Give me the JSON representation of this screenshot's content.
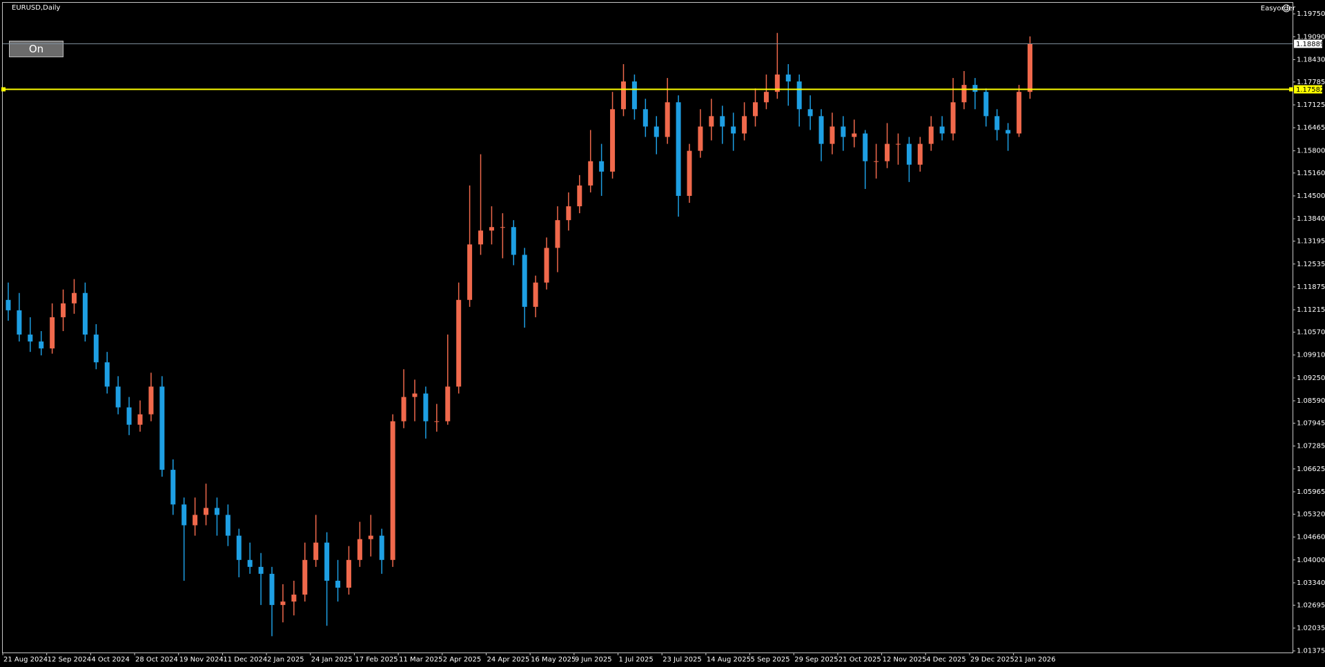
{
  "chart_data": {
    "type": "candlestick",
    "title": "EURUSD,Daily",
    "open": [
      1.115,
      1.112,
      1.105,
      1.103,
      1.101,
      1.11,
      1.114,
      1.117,
      1.105,
      1.097,
      1.09,
      1.084,
      1.079,
      1.082,
      1.09,
      1.066,
      1.056,
      1.05,
      1.053,
      1.055,
      1.053,
      1.047,
      1.04,
      1.038,
      1.036,
      1.027,
      1.028,
      1.03,
      1.04,
      1.045,
      1.034,
      1.032,
      1.04,
      1.046,
      1.047,
      1.04,
      1.08,
      1.087,
      1.088,
      1.08,
      1.08,
      1.09,
      1.115,
      1.131,
      1.135,
      1.136,
      1.136,
      1.128,
      1.113,
      1.12,
      1.13,
      1.138,
      1.142,
      1.148,
      1.155,
      1.152,
      1.17,
      1.178,
      1.17,
      1.165,
      1.162,
      1.172,
      1.145,
      1.158,
      1.165,
      1.168,
      1.165,
      1.163,
      1.168,
      1.172,
      1.175,
      1.18,
      1.178,
      1.17,
      1.168,
      1.16,
      1.165,
      1.162,
      1.163,
      1.155,
      1.155,
      1.16,
      1.16,
      1.154,
      1.16,
      1.165,
      1.163,
      1.172,
      1.177,
      1.175,
      1.168,
      1.164,
      1.163,
      1.175
    ],
    "high": [
      1.12,
      1.117,
      1.11,
      1.106,
      1.114,
      1.118,
      1.121,
      1.12,
      1.108,
      1.1,
      1.093,
      1.087,
      1.086,
      1.094,
      1.093,
      1.069,
      1.058,
      1.058,
      1.062,
      1.058,
      1.056,
      1.049,
      1.045,
      1.042,
      1.038,
      1.033,
      1.034,
      1.045,
      1.053,
      1.048,
      1.04,
      1.044,
      1.051,
      1.053,
      1.049,
      1.082,
      1.095,
      1.092,
      1.09,
      1.085,
      1.105,
      1.12,
      1.148,
      1.157,
      1.142,
      1.14,
      1.138,
      1.13,
      1.122,
      1.133,
      1.142,
      1.146,
      1.151,
      1.164,
      1.16,
      1.175,
      1.183,
      1.18,
      1.173,
      1.168,
      1.179,
      1.174,
      1.16,
      1.17,
      1.173,
      1.171,
      1.169,
      1.172,
      1.176,
      1.18,
      1.192,
      1.183,
      1.18,
      1.174,
      1.17,
      1.169,
      1.168,
      1.167,
      1.164,
      1.16,
      1.166,
      1.163,
      1.162,
      1.162,
      1.168,
      1.168,
      1.179,
      1.181,
      1.179,
      1.176,
      1.17,
      1.166,
      1.177,
      1.191
    ],
    "low": [
      1.109,
      1.103,
      1.1,
      1.099,
      1.0995,
      1.106,
      1.111,
      1.103,
      1.095,
      1.088,
      1.082,
      1.076,
      1.077,
      1.08,
      1.064,
      1.053,
      1.034,
      1.047,
      1.05,
      1.047,
      1.044,
      1.035,
      1.036,
      1.027,
      1.018,
      1.022,
      1.024,
      1.028,
      1.038,
      1.021,
      1.028,
      1.03,
      1.038,
      1.041,
      1.036,
      1.038,
      1.078,
      1.08,
      1.075,
      1.077,
      1.079,
      1.088,
      1.113,
      1.128,
      1.131,
      1.127,
      1.125,
      1.107,
      1.11,
      1.118,
      1.123,
      1.135,
      1.14,
      1.146,
      1.145,
      1.15,
      1.168,
      1.167,
      1.162,
      1.157,
      1.16,
      1.139,
      1.143,
      1.156,
      1.161,
      1.16,
      1.158,
      1.161,
      1.165,
      1.17,
      1.173,
      1.171,
      1.165,
      1.164,
      1.155,
      1.157,
      1.158,
      1.159,
      1.147,
      1.15,
      1.153,
      1.154,
      1.149,
      1.152,
      1.158,
      1.161,
      1.161,
      1.17,
      1.17,
      1.165,
      1.161,
      1.158,
      1.162,
      1.173
    ],
    "close": [
      1.112,
      1.105,
      1.103,
      1.101,
      1.11,
      1.114,
      1.117,
      1.105,
      1.097,
      1.09,
      1.084,
      1.079,
      1.082,
      1.09,
      1.066,
      1.056,
      1.05,
      1.053,
      1.055,
      1.053,
      1.047,
      1.04,
      1.038,
      1.036,
      1.027,
      1.028,
      1.03,
      1.04,
      1.045,
      1.034,
      1.032,
      1.04,
      1.046,
      1.047,
      1.04,
      1.08,
      1.087,
      1.088,
      1.08,
      1.08,
      1.09,
      1.115,
      1.131,
      1.135,
      1.136,
      1.136,
      1.128,
      1.113,
      1.12,
      1.13,
      1.138,
      1.142,
      1.148,
      1.155,
      1.152,
      1.17,
      1.178,
      1.17,
      1.165,
      1.162,
      1.172,
      1.145,
      1.158,
      1.165,
      1.168,
      1.165,
      1.163,
      1.168,
      1.172,
      1.175,
      1.18,
      1.178,
      1.17,
      1.168,
      1.16,
      1.165,
      1.162,
      1.163,
      1.155,
      1.155,
      1.16,
      1.16,
      1.154,
      1.16,
      1.165,
      1.163,
      1.172,
      1.177,
      1.175,
      1.168,
      1.164,
      1.163,
      1.175,
      1.1889
    ],
    "up_color": "#f0694c",
    "down_color": "#1e9fe3",
    "x_labels": [
      "21 Aug 2024",
      "12 Sep 2024",
      "4 Oct 2024",
      "28 Oct 2024",
      "19 Nov 2024",
      "11 Dec 2024",
      "2 Jan 2025",
      "24 Jan 2025",
      "17 Feb 2025",
      "11 Mar 2025",
      "2 Apr 2025",
      "24 Apr 2025",
      "16 May 2025",
      "9 Jun 2025",
      "1 Jul 2025",
      "23 Jul 2025",
      "14 Aug 2025",
      "5 Sep 2025",
      "29 Sep 2025",
      "21 Oct 2025",
      "12 Nov 2025",
      "4 Dec 2025",
      "29 Dec 2025",
      "21 Jan 2026"
    ],
    "ylim": [
      1.0133,
      1.2007
    ],
    "yticks": [
      {
        "value": 1.1975,
        "label": "1.19750"
      },
      {
        "value": 1.1909,
        "label": "1.19090"
      },
      {
        "value": 1.1843,
        "label": "1.18430"
      },
      1.17785,
      1.17125,
      1.16465,
      {
        "value": 1.158,
        "label": "1.15800"
      },
      {
        "value": 1.1516,
        "label": "1.15160"
      },
      {
        "value": 1.145,
        "label": "1.14500"
      },
      {
        "value": 1.1384,
        "label": "1.13840"
      },
      1.13195,
      1.12535,
      1.11875,
      1.11215,
      {
        "value": 1.1057,
        "label": "1.10570"
      },
      {
        "value": 1.0991,
        "label": "1.09910"
      },
      {
        "value": 1.0925,
        "label": "1.09250"
      },
      {
        "value": 1.0859,
        "label": "1.08590"
      },
      1.07945,
      1.07285,
      1.06625,
      1.05965,
      {
        "value": 1.0532,
        "label": "1.05320"
      },
      {
        "value": 1.0466,
        "label": "1.04660"
      },
      {
        "value": 1.04,
        "label": "1.04000"
      },
      {
        "value": 1.0334,
        "label": "1.03340"
      },
      1.02695,
      1.02035,
      1.01375
    ],
    "price_lines": [
      {
        "value": 1.18889,
        "color": "#7f8f9c",
        "label_color": "#ffffff"
      },
      {
        "value": 1.17582,
        "color": "#ffff00",
        "label_color": "#ffff00"
      }
    ]
  },
  "toolbar": {
    "button": "On",
    "plugin": "Easyorder"
  }
}
